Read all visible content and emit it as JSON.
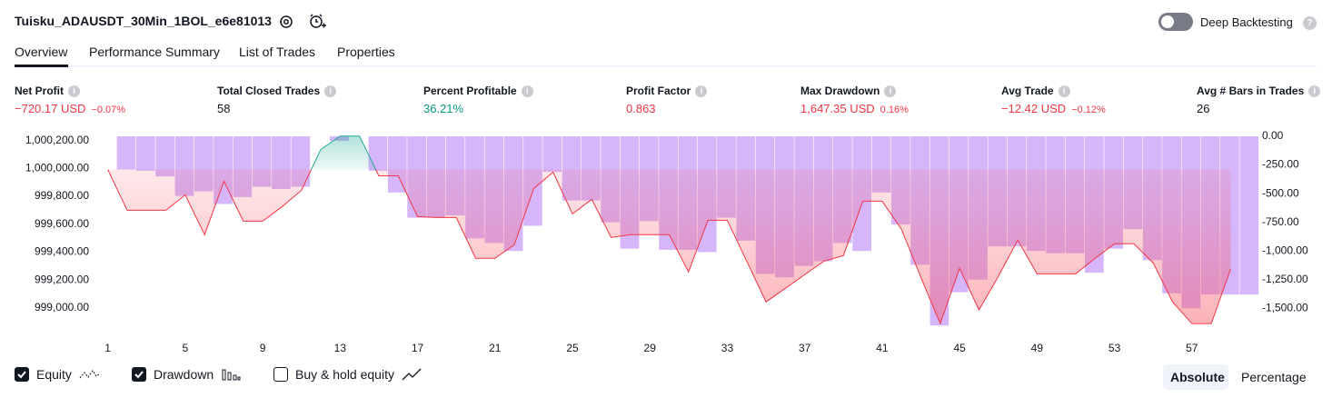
{
  "header": {
    "strategy_name": "Tuisku_ADAUSDT_30Min_1BOL_e6e81013",
    "deep_backtesting": "Deep Backtesting"
  },
  "tabs": [
    "Overview",
    "Performance Summary",
    "List of Trades",
    "Properties"
  ],
  "stats": [
    {
      "label": "Net Profit",
      "value": "−720.17 USD",
      "change": "−0.07%",
      "color": "#f23645"
    },
    {
      "label": "Total Closed Trades",
      "value": "58",
      "color": "#131722"
    },
    {
      "label": "Percent Profitable",
      "value": "36.21%",
      "color": "#089981"
    },
    {
      "label": "Profit Factor",
      "value": "0.863",
      "color": "#f23645"
    },
    {
      "label": "Max Drawdown",
      "value": "1,647.35 USD",
      "change": "0.16%",
      "color": "#f23645"
    },
    {
      "label": "Avg Trade",
      "value": "−12.42 USD",
      "change": "−0.12%",
      "color": "#f23645"
    },
    {
      "label": "Avg # Bars in Trades",
      "value": "26",
      "color": "#131722"
    }
  ],
  "chart_data": {
    "type": "combo",
    "x": [
      1,
      2,
      3,
      4,
      5,
      6,
      7,
      8,
      9,
      10,
      11,
      12,
      13,
      14,
      15,
      16,
      17,
      18,
      19,
      20,
      21,
      22,
      23,
      24,
      25,
      26,
      27,
      28,
      29,
      30,
      31,
      32,
      33,
      34,
      35,
      36,
      37,
      38,
      39,
      40,
      41,
      42,
      43,
      44,
      45,
      46,
      47,
      48,
      49,
      50,
      51,
      52,
      53,
      54,
      55,
      56,
      57,
      58,
      59
    ],
    "xlim": [
      0.5,
      60.2
    ],
    "xticks": [
      1,
      5,
      9,
      13,
      17,
      21,
      25,
      29,
      33,
      37,
      41,
      45,
      49,
      53,
      57
    ],
    "ylim": [
      998850,
      1000230
    ],
    "yticks": [
      {
        "value": 1000200,
        "label": "1,000,200.00"
      },
      {
        "value": 1000000,
        "label": "1,000,000.00"
      },
      {
        "value": 999800,
        "label": "999,800.00"
      },
      {
        "value": 999600,
        "label": "999,600.00"
      },
      {
        "value": 999400,
        "label": "999,400.00"
      },
      {
        "value": 999200,
        "label": "999,200.00"
      },
      {
        "value": 999000,
        "label": "999,000.00"
      }
    ],
    "y2lim": [
      -1680,
      0
    ],
    "y2ticks": [
      {
        "value": 0,
        "label": "0.00"
      },
      {
        "value": -250,
        "label": "-250.00"
      },
      {
        "value": -500,
        "label": "-500.00"
      },
      {
        "value": -750,
        "label": "-750.00"
      },
      {
        "value": -1000,
        "label": "-1,000.00"
      },
      {
        "value": -1250,
        "label": "-1,250.00"
      },
      {
        "value": -1500,
        "label": "-1,500.00"
      }
    ],
    "grid": false,
    "series": [
      {
        "name": "Drawdown",
        "kind": "bar",
        "axis": "y2",
        "color": "#d5b6fa",
        "values": [
          -290,
          -300,
          -350,
          -520,
          -480,
          -590,
          -530,
          -440,
          -460,
          -440,
          0,
          -40,
          0,
          -300,
          -490,
          -710,
          -710,
          -690,
          -890,
          -930,
          -1000,
          -780,
          -310,
          -560,
          -560,
          -750,
          -980,
          -740,
          -990,
          -990,
          -1010,
          -710,
          -910,
          -1200,
          -1230,
          -1130,
          -1090,
          -930,
          -1000,
          -490,
          -770,
          -1120,
          -1650,
          -1360,
          -1250,
          -960,
          -960,
          -1000,
          -1020,
          -1020,
          -1190,
          -980,
          -810,
          -1080,
          -1370,
          -1500,
          -1380,
          -1380,
          -1380
        ]
      },
      {
        "name": "Equity",
        "kind": "line",
        "color": "#f23645",
        "up_color": "#22ab94",
        "values": [
          999992,
          999700,
          999700,
          999700,
          999810,
          999525,
          999908,
          999622,
          999622,
          999726,
          999843,
          1000135,
          1000232,
          1000232,
          999947,
          999947,
          999655,
          999648,
          999648,
          999356,
          999356,
          999453,
          999856,
          999973,
          999674,
          999778,
          999505,
          999525,
          999525,
          999525,
          999258,
          999629,
          999629,
          999336,
          999044,
          999141,
          999239,
          999336,
          999375,
          999765,
          999765,
          999564,
          999219,
          998888,
          999284,
          998986,
          999226,
          999486,
          999245,
          999245,
          999245,
          999356,
          999460,
          999460,
          999323,
          999044,
          998888,
          998888,
          999278
        ]
      }
    ]
  },
  "legend_toggles": [
    {
      "label": "Equity",
      "checked": true
    },
    {
      "label": "Drawdown",
      "checked": true
    },
    {
      "label": "Buy & hold equity",
      "checked": false
    }
  ],
  "view_modes": [
    "Absolute",
    "Percentage"
  ]
}
